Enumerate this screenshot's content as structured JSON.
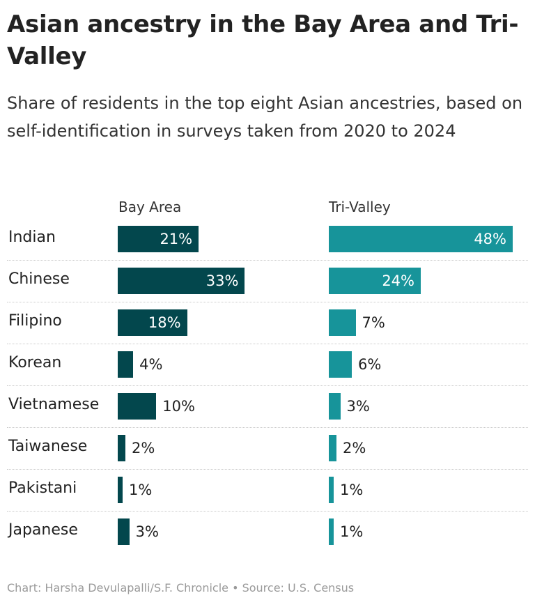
{
  "chart_data": {
    "type": "bar",
    "title": "Asian ancestry in the Bay Area and Tri-Valley",
    "subtitle": "Share of residents in the top eight Asian ancestries, based on self-identification in surveys taken from 2020 to 2024",
    "categories": [
      "Indian",
      "Chinese",
      "Filipino",
      "Korean",
      "Vietnamese",
      "Taiwanese",
      "Pakistani",
      "Japanese"
    ],
    "series": [
      {
        "name": "Bay Area",
        "values": [
          21,
          33,
          18,
          4,
          10,
          2,
          1,
          3
        ],
        "labels": [
          "21%",
          "33%",
          "18%",
          "4%",
          "10%",
          "2%",
          "1%",
          "3%"
        ],
        "color": "#03474d"
      },
      {
        "name": "Tri-Valley",
        "values": [
          48,
          24,
          7,
          6,
          3,
          2,
          1,
          1
        ],
        "labels": [
          "48%",
          "24%",
          "7%",
          "6%",
          "3%",
          "2%",
          "1%",
          "1%"
        ],
        "color": "#17949a"
      }
    ],
    "unit": "%",
    "xlim": [
      0,
      48
    ],
    "grid": false,
    "legend": "none"
  },
  "footer": {
    "credit": "Chart: Harsha Devulapalli/S.F. Chronicle • Source: U.S. Census"
  }
}
